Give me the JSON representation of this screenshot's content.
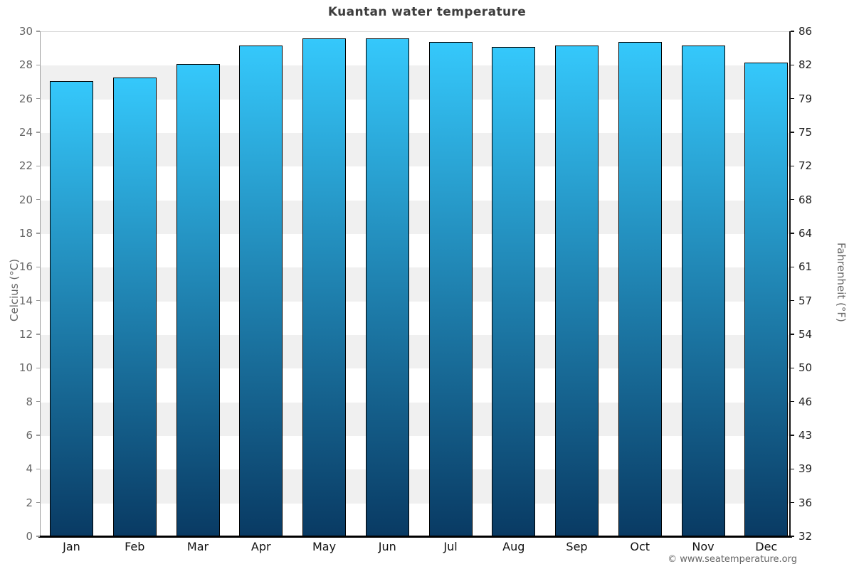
{
  "title": "Kuantan water temperature",
  "copyright_text": "© www.seatemperature.org",
  "chart_data": {
    "type": "bar",
    "title": "Kuantan water temperature",
    "categories": [
      "Jan",
      "Feb",
      "Mar",
      "Apr",
      "May",
      "Jun",
      "Jul",
      "Aug",
      "Sep",
      "Oct",
      "Nov",
      "Dec"
    ],
    "series": [
      {
        "name": "Water temperature (°C)",
        "values": [
          27.1,
          27.3,
          28.1,
          29.2,
          29.6,
          29.6,
          29.4,
          29.1,
          29.2,
          29.4,
          29.2,
          28.2
        ]
      }
    ],
    "ylabel_left": "Celcius (°C)",
    "ylabel_right": "Fahrenheit (°F)",
    "ylim": [
      0,
      30
    ],
    "yticks_celsius": [
      30,
      28,
      26,
      24,
      22,
      20,
      18,
      16,
      14,
      12,
      10,
      8,
      6,
      4,
      2,
      0
    ],
    "yticks_fahrenheit": [
      86,
      82,
      79,
      75,
      72,
      68,
      64,
      61,
      57,
      54,
      50,
      46,
      43,
      39,
      36,
      32
    ],
    "legend": "none",
    "grid": "alternating horizontal bands every 2°C",
    "colors": {
      "bar_gradient_top": "#35c8fb",
      "bar_gradient_bottom": "#093a63",
      "bar_border": "#000000",
      "band_white": "#ffffff",
      "band_gray": "#f0f0f0",
      "title_color": "#3d3d3d",
      "left_tick_color": "#666666",
      "right_tick_color": "#222222",
      "month_label_color": "#111111",
      "axis_label_color": "#666666",
      "copyright_color": "#666666"
    }
  }
}
